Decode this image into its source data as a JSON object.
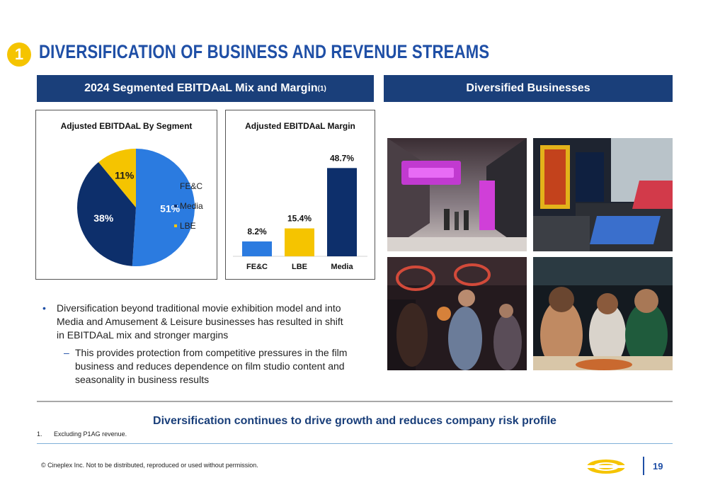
{
  "header": {
    "section_number": "1",
    "title": "DIVERSIFICATION OF BUSINESS AND REVENUE STREAMS"
  },
  "left_banner": {
    "text": "2024 Segmented EBITDAaL Mix and Margin",
    "sup": "(1)"
  },
  "right_banner": {
    "text": "Diversified Businesses"
  },
  "colors": {
    "brand_blue": "#1f4fa6",
    "navy": "#1a3f7a",
    "fec_blue": "#2b7be0",
    "media_navy": "#0d2f6b",
    "lbe_yellow": "#f5c400"
  },
  "chart_data": [
    {
      "type": "pie",
      "title": "Adjusted EBITDAaL By Segment",
      "categories": [
        "FE&C",
        "Media",
        "LBE"
      ],
      "values": [
        51,
        38,
        11
      ],
      "labels": [
        "51%",
        "38%",
        "11%"
      ],
      "colors": [
        "#2b7be0",
        "#0d2f6b",
        "#f5c400"
      ],
      "legend": "right"
    },
    {
      "type": "bar",
      "title": "Adjusted EBITDAaL Margin",
      "categories": [
        "FE&C",
        "LBE",
        "Media"
      ],
      "values": [
        8.2,
        15.4,
        48.7
      ],
      "labels": [
        "8.2%",
        "15.4%",
        "48.7%"
      ],
      "colors": [
        "#2b7be0",
        "#f5c400",
        "#0d2f6b"
      ],
      "ylim": [
        0,
        50
      ]
    }
  ],
  "bullets": {
    "main": "Diversification beyond traditional movie exhibition model and into Media and Amusement & Leisure businesses has resulted in shift in EBITDAaL mix and stronger margins",
    "sub": "This provides protection from competitive pressures in the film business and reduces dependence on film studio content and seasonality in business results"
  },
  "callout": "Diversification continues to drive growth and reduces company risk profile",
  "footnote": {
    "number": "1.",
    "text": "Excluding P1AG revenue."
  },
  "footer": {
    "copyright": "© Cineplex Inc. Not to be distributed, reproduced or used without permission.",
    "page": "19"
  }
}
